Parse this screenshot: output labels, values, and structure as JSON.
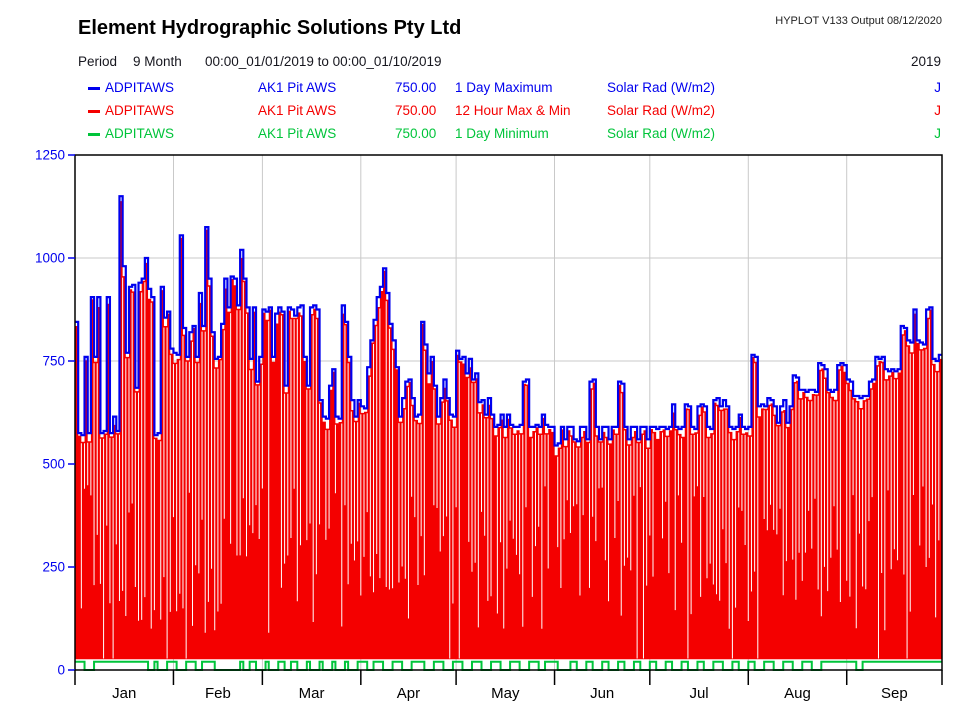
{
  "header": {
    "title": "Element Hydrographic Solutions Pty Ltd",
    "hyplot_version": "HYPLOT V133  Output 08/12/2020"
  },
  "period": {
    "label": "Period",
    "duration": "9 Month",
    "range": "00:00_01/01/2019 to 00:00_01/10/2019",
    "year": "2019"
  },
  "legend": [
    {
      "station": "ADPITAWS",
      "site": "AK1 Pit AWS",
      "value": "750.00",
      "trace": "1 Day Maximum",
      "units": "Solar Rad (W/m2)",
      "quality": "J",
      "color": "#0000ee"
    },
    {
      "station": "ADPITAWS",
      "site": "AK1 Pit AWS",
      "value": "750.00",
      "trace": "12 Hour Max & Min",
      "units": "Solar Rad (W/m2)",
      "quality": "J",
      "color": "#f40000"
    },
    {
      "station": "ADPITAWS",
      "site": "AK1 Pit AWS",
      "value": "750.00",
      "trace": "1 Day Minimum",
      "units": "Solar Rad (W/m2)",
      "quality": "J",
      "color": "#00c43a"
    }
  ],
  "chart_data": {
    "type": "bar",
    "title": "Solar Rad (W/m2) daily traces, AK1 Pit AWS, Jan-Sep 2019",
    "ylabel": "Solar Rad (W/m2)",
    "ylim": [
      0,
      1250
    ],
    "y_ticks": [
      0,
      250,
      500,
      750,
      1000,
      1250
    ],
    "y_tick_color": "#0000ee",
    "grid_color": "#c9c9c9",
    "axis_color": "#000000",
    "months": [
      "Jan",
      "Feb",
      "Mar",
      "Apr",
      "May",
      "Jun",
      "Jul",
      "Aug",
      "Sep"
    ],
    "month_days": [
      31,
      28,
      31,
      30,
      31,
      30,
      31,
      31,
      30
    ],
    "series": [
      {
        "name": "1 Day Maximum",
        "color": "#0000ee",
        "style": "step-line",
        "values": [
          845,
          575,
          570,
          760,
          575,
          905,
          760,
          905,
          575,
          580,
          905,
          575,
          615,
          580,
          1150,
          980,
          770,
          930,
          935,
          685,
          940,
          950,
          1000,
          925,
          905,
          570,
          575,
          930,
          855,
          870,
          780,
          770,
          765,
          1055,
          830,
          760,
          820,
          835,
          760,
          915,
          835,
          1075,
          950,
          820,
          755,
          760,
          840,
          950,
          880,
          955,
          950,
          885,
          1020,
          950,
          880,
          755,
          880,
          700,
          760,
          875,
          870,
          880,
          760,
          865,
          880,
          870,
          690,
          880,
          875,
          860,
          880,
          885,
          760,
          690,
          880,
          885,
          875,
          655,
          615,
          610,
          690,
          730,
          615,
          610,
          885,
          845,
          760,
          655,
          615,
          655,
          640,
          635,
          735,
          800,
          850,
          905,
          930,
          975,
          915,
          840,
          800,
          735,
          615,
          660,
          700,
          705,
          660,
          615,
          620,
          845,
          790,
          720,
          760,
          690,
          615,
          660,
          705,
          660,
          620,
          615,
          775,
          755,
          760,
          720,
          755,
          705,
          720,
          650,
          655,
          620,
          660,
          620,
          590,
          595,
          620,
          590,
          620,
          595,
          590,
          590,
          595,
          700,
          705,
          590,
          590,
          595,
          590,
          620,
          595,
          590,
          590,
          545,
          550,
          590,
          560,
          590,
          590,
          560,
          555,
          590,
          590,
          560,
          700,
          705,
          590,
          560,
          590,
          590,
          560,
          590,
          590,
          700,
          695,
          590,
          560,
          590,
          590,
          560,
          590,
          590,
          560,
          590,
          590,
          585,
          590,
          590,
          585,
          590,
          645,
          590,
          585,
          590,
          645,
          640,
          590,
          585,
          640,
          645,
          640,
          590,
          585,
          655,
          660,
          640,
          655,
          640,
          590,
          585,
          590,
          620,
          590,
          585,
          590,
          765,
          760,
          640,
          645,
          640,
          660,
          655,
          640,
          600,
          640,
          655,
          600,
          640,
          715,
          710,
          680,
          680,
          675,
          680,
          680,
          675,
          745,
          740,
          730,
          680,
          675,
          680,
          740,
          745,
          740,
          705,
          700,
          665,
          665,
          660,
          665,
          665,
          700,
          705,
          760,
          755,
          760,
          730,
          725,
          730,
          725,
          730,
          835,
          830,
          800,
          795,
          875,
          800,
          795,
          790,
          875,
          880,
          755,
          750,
          765
        ]
      },
      {
        "name": "12 Hour Max & Min",
        "color": "#f40000",
        "style": "bars",
        "bar_base_value": 26,
        "offset_below_max_cycle": [
          10,
          6,
          16,
          8,
          20,
          5,
          12,
          24
        ]
      },
      {
        "name": "1 Day Minimum",
        "color": "#00c43a",
        "style": "step-line",
        "base_value": 20,
        "zero_day_indices": [
          3,
          4,
          5,
          23,
          24,
          26,
          27,
          28,
          32,
          33,
          34,
          38,
          39,
          44,
          45,
          46,
          47,
          48,
          49,
          50,
          51,
          53,
          54,
          57,
          58,
          59,
          61,
          62,
          63,
          66,
          67,
          70,
          71,
          72,
          74,
          75,
          76,
          78,
          79,
          80,
          82,
          83,
          84,
          86,
          87,
          88,
          92,
          93,
          97,
          98,
          99,
          103,
          104,
          105,
          110,
          111,
          112,
          116,
          117,
          118,
          122,
          123,
          124,
          128,
          129,
          130,
          134,
          135,
          136,
          140,
          141,
          142,
          146,
          147,
          152,
          153,
          154,
          155,
          158,
          159,
          160,
          163,
          164,
          165,
          168,
          169,
          170,
          173,
          174,
          175,
          178,
          179,
          180,
          183,
          184,
          185,
          188,
          189,
          190,
          193,
          194,
          195,
          198,
          199,
          200,
          204,
          205,
          206,
          209,
          210,
          211,
          214,
          215,
          216,
          220,
          221,
          222,
          226,
          227,
          228,
          232,
          233,
          234,
          246,
          247
        ]
      }
    ]
  }
}
